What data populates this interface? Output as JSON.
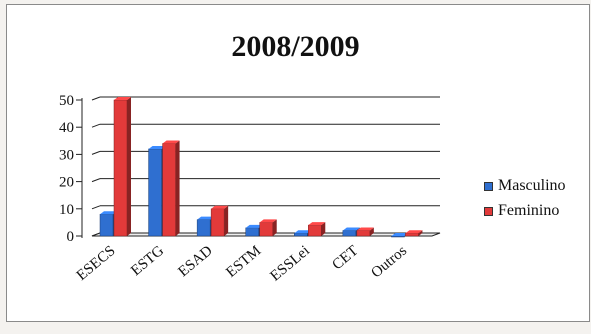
{
  "chart_data": {
    "type": "bar",
    "title": "2008/2009",
    "categories": [
      "ESECS",
      "ESTG",
      "ESAD",
      "ESTM",
      "ESSLei",
      "CET",
      "Outros"
    ],
    "series": [
      {
        "name": "Masculino",
        "values": [
          8,
          32,
          6,
          3,
          1,
          2,
          0
        ],
        "color": "#2f6fd0"
      },
      {
        "name": "Feminino",
        "values": [
          50,
          34,
          10,
          5,
          4,
          2,
          1
        ],
        "color": "#e23a3a"
      }
    ],
    "ylim": [
      0,
      50
    ],
    "yticks": [
      0,
      10,
      20,
      30,
      40,
      50
    ],
    "grid": true,
    "legend_position": "right"
  }
}
